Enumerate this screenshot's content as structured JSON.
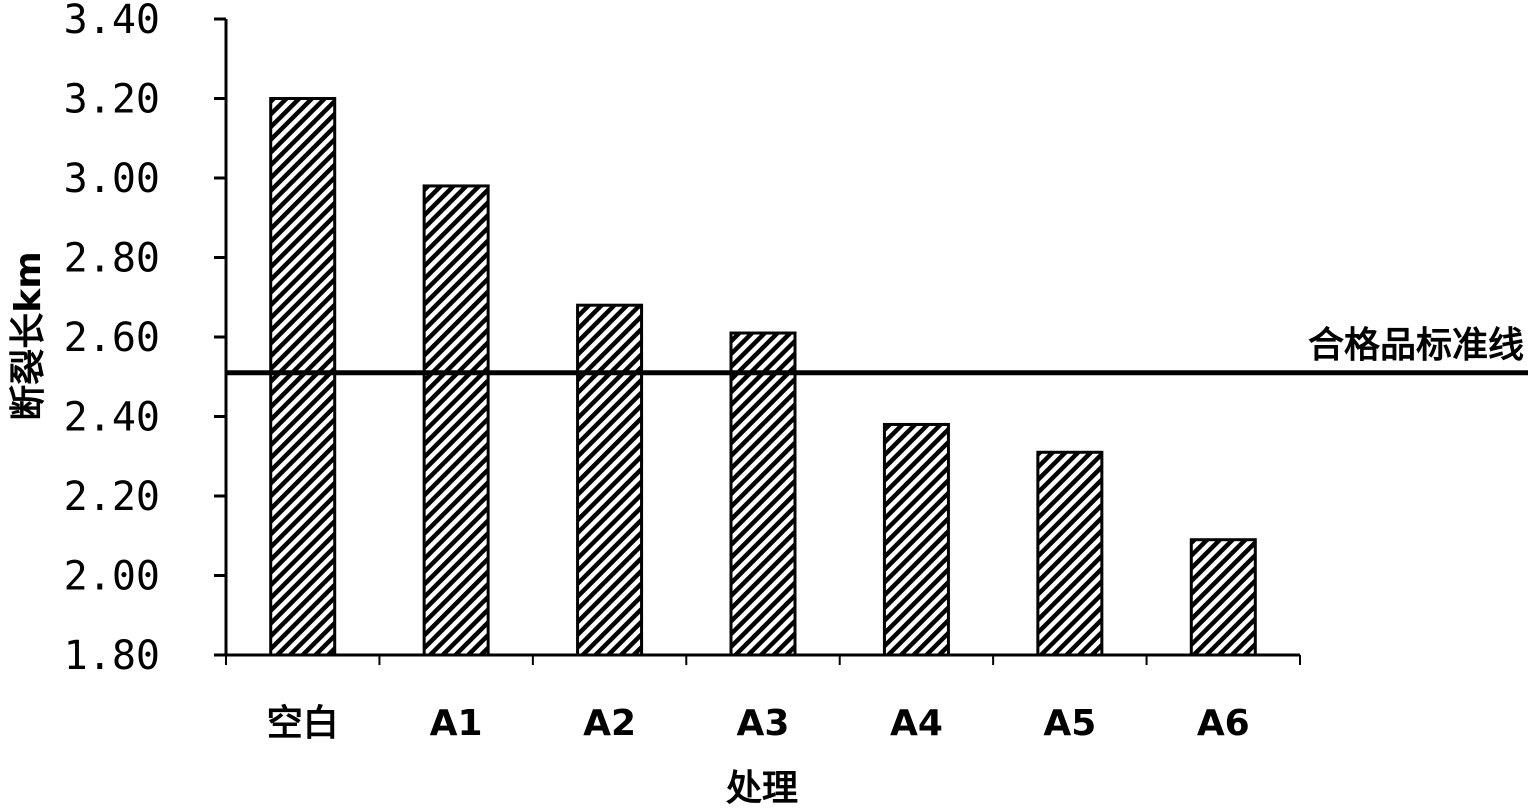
{
  "chart_data": {
    "type": "bar",
    "categories": [
      "空白",
      "A1",
      "A2",
      "A3",
      "A4",
      "A5",
      "A6"
    ],
    "values": [
      3.2,
      2.98,
      2.68,
      2.61,
      2.38,
      2.31,
      2.09
    ],
    "title": "",
    "xlabel": "处理",
    "ylabel": "断裂长km",
    "ylim": [
      1.8,
      3.4
    ],
    "yticks": [
      "1.80",
      "2.00",
      "2.20",
      "2.40",
      "2.60",
      "2.80",
      "3.00",
      "3.20",
      "3.40"
    ],
    "reference_line": {
      "value": 2.51,
      "label": "合格品标准线"
    },
    "bar_fill": "diagonal-hatch",
    "bar_color": "#000000",
    "grid": false,
    "legend": "none"
  }
}
